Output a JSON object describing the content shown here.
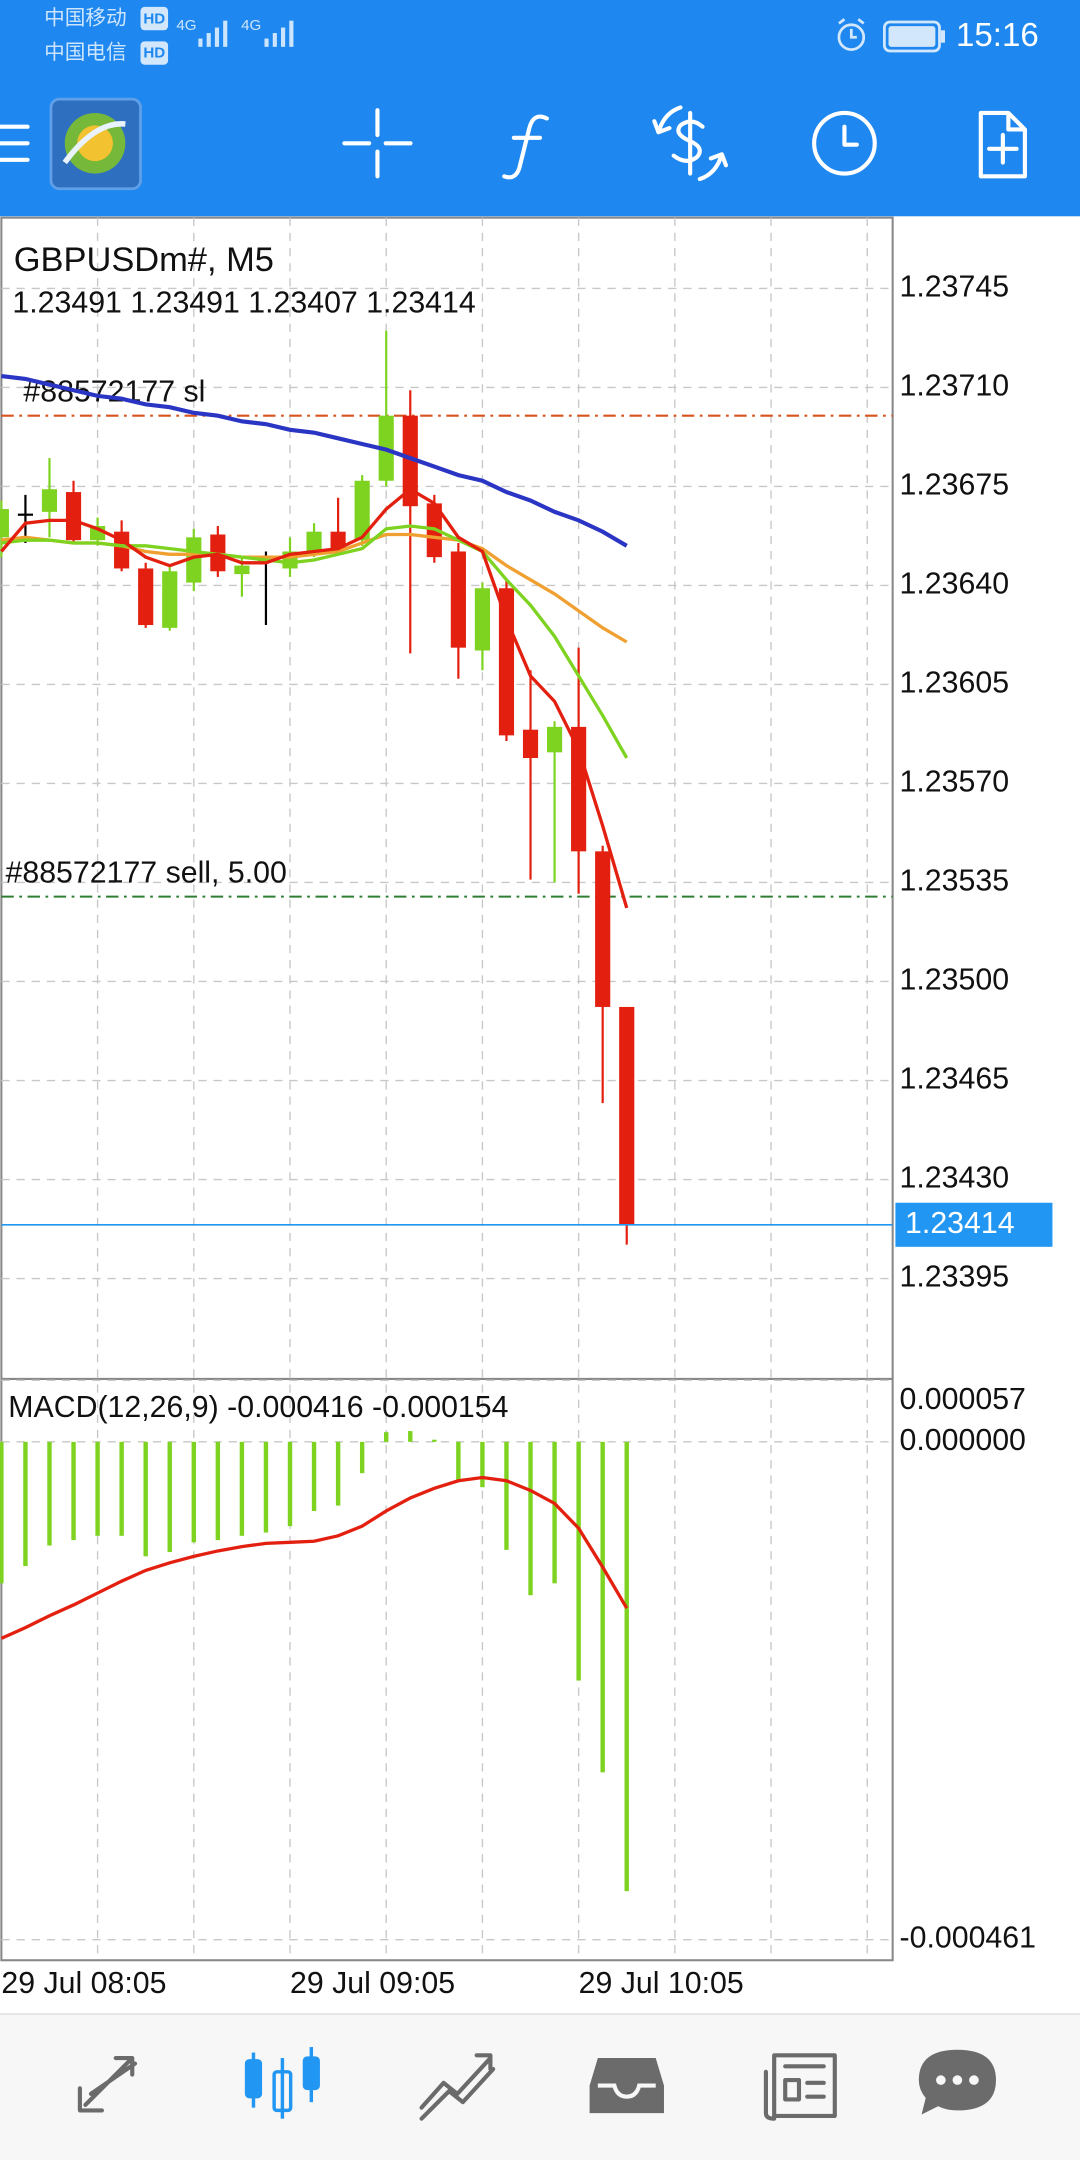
{
  "status_bar": {
    "carrier_1": "中国移动",
    "carrier_2": "中国电信",
    "hd": "HD",
    "network": "4G",
    "time": "15:16"
  },
  "chart_data": [
    {
      "type": "candlestick",
      "title": "GBPUSDm#, M5",
      "categories": [
        "29 Jul 08:05",
        null,
        null,
        null,
        null,
        null,
        null,
        null,
        null,
        null,
        null,
        null,
        "29 Jul 09:05",
        null,
        null,
        null,
        null,
        null,
        null,
        null,
        null,
        null,
        null,
        null,
        "29 Jul 10:05",
        null,
        null
      ],
      "open": [
        1.23657,
        1.23665,
        1.23666,
        1.23673,
        1.23656,
        1.23659,
        1.23646,
        1.23625,
        1.23641,
        1.23658,
        1.23644,
        1.23649,
        1.23646,
        1.23652,
        1.23659,
        1.23656,
        1.23677,
        1.237,
        1.23669,
        1.23652,
        1.23617,
        1.23639,
        1.23589,
        1.23581,
        1.2359,
        1.23546,
        1.23491
      ],
      "high": [
        1.2367,
        1.23672,
        1.23685,
        1.23677,
        1.23664,
        1.23663,
        1.23648,
        1.23647,
        1.2366,
        1.23661,
        1.2365,
        1.23652,
        1.23657,
        1.23662,
        1.23671,
        1.23679,
        1.2373,
        1.23709,
        1.23672,
        1.23655,
        1.23641,
        1.23642,
        1.2361,
        1.23592,
        1.23618,
        1.23548,
        1.23491
      ],
      "low": [
        1.2365,
        1.23655,
        1.23657,
        1.23655,
        1.23654,
        1.23645,
        1.23625,
        1.23624,
        1.23638,
        1.23643,
        1.23636,
        1.23626,
        1.23643,
        1.2365,
        1.23651,
        1.23654,
        1.23675,
        1.23616,
        1.23648,
        1.23607,
        1.2361,
        1.23585,
        1.23536,
        1.23535,
        1.23531,
        1.23457,
        1.23407
      ],
      "close": [
        1.23667,
        1.23665,
        1.23674,
        1.23656,
        1.23661,
        1.23646,
        1.23626,
        1.23645,
        1.23657,
        1.23645,
        1.23647,
        1.23649,
        1.23652,
        1.23659,
        1.23653,
        1.23677,
        1.237,
        1.23668,
        1.2365,
        1.23618,
        1.23639,
        1.23587,
        1.23579,
        1.2359,
        1.23546,
        1.23491,
        1.23414
      ],
      "up_color": "#7ed321",
      "down_color": "#e3200f",
      "doji_color": "#000000",
      "series": [
        {
          "color": "#2a35c4",
          "values": [
            1.23714,
            1.23713,
            1.23711,
            1.23709,
            1.23707,
            1.23706,
            1.23704,
            1.23703,
            1.23701,
            1.237,
            1.23698,
            1.23697,
            1.23695,
            1.23694,
            1.23692,
            1.2369,
            1.23688,
            1.23685,
            1.23682,
            1.23679,
            1.23677,
            1.23673,
            1.2367,
            1.23666,
            1.23663,
            1.23659,
            1.23654
          ]
        },
        {
          "color": "#f0a030",
          "values": [
            1.23656,
            1.23657,
            1.23656,
            1.23655,
            1.23655,
            1.23654,
            1.23652,
            1.23651,
            1.23651,
            1.23651,
            1.2365,
            1.2365,
            1.2365,
            1.23651,
            1.23652,
            1.23655,
            1.23658,
            1.23658,
            1.23657,
            1.23656,
            1.23653,
            1.23647,
            1.23642,
            1.23637,
            1.23631,
            1.23625,
            1.2362
          ]
        },
        {
          "color": "#7ed321",
          "values": [
            1.23655,
            1.23656,
            1.23656,
            1.23655,
            1.23655,
            1.23654,
            1.23654,
            1.23653,
            1.23652,
            1.23651,
            1.2365,
            1.23649,
            1.23648,
            1.23649,
            1.23651,
            1.23653,
            1.2366,
            1.23661,
            1.2366,
            1.23656,
            1.23652,
            1.23642,
            1.23633,
            1.23622,
            1.23608,
            1.23594,
            1.23579
          ]
        },
        {
          "color": "#e3200f",
          "values": [
            1.23652,
            1.23662,
            1.23663,
            1.23663,
            1.2366,
            1.23656,
            1.2365,
            1.23647,
            1.2365,
            1.23651,
            1.23648,
            1.23648,
            1.23651,
            1.23652,
            1.23653,
            1.23657,
            1.23667,
            1.23674,
            1.23669,
            1.23657,
            1.23652,
            1.23628,
            1.23608,
            1.23599,
            1.23582,
            1.23555,
            1.23526
          ]
        }
      ],
      "levels": [
        {
          "label": "#88572177 sl",
          "value": 1.237,
          "color": "#d9531e"
        },
        {
          "label": "#88572177 sell, 5.00",
          "value": 1.2353,
          "color": "#2e7d32"
        }
      ],
      "bid_color": "#2196f3",
      "ylim": [
        1.2336,
        1.2377
      ],
      "yticks": [
        1.23745,
        {
          "value": 1.2371,
          "label": "1.23710"
        },
        1.23675,
        {
          "value": 1.2364,
          "label": "1.23640"
        },
        1.23605,
        {
          "value": 1.2357,
          "label": "1.23570"
        },
        1.23535,
        {
          "value": 1.235,
          "label": "1.23500"
        },
        1.23465,
        {
          "value": 1.2343,
          "label": "1.23430"
        },
        1.23395
      ],
      "grid": true
    },
    {
      "type": "macd",
      "title": "MACD(12,26,9)",
      "color": "#7ed321",
      "values": [
        -0.000131,
        -0.000115,
        -9.6e-05,
        -9.1e-05,
        -8.7e-05,
        -8.7e-05,
        -0.000106,
        -0.000102,
        -9.3e-05,
        -9.1e-05,
        -8.7e-05,
        -8.4e-05,
        -7.8e-05,
        -6.4e-05,
        -5.9e-05,
        -2.9e-05,
        9e-06,
        1e-05,
        2e-06,
        -3.6e-05,
        -4.2e-05,
        -0.0001,
        -0.000142,
        -0.000131,
        -0.000221,
        -0.000306,
        -0.000416
      ],
      "signal": {
        "color": "#e3200f",
        "values": [
          -0.000182,
          -0.000172,
          -0.000161,
          -0.000151,
          -0.00014,
          -0.000129,
          -0.000119,
          -0.000112,
          -0.000106,
          -0.000101,
          -9.7e-05,
          -9.4e-05,
          -9.3e-05,
          -9.2e-05,
          -8.7e-05,
          -7.8e-05,
          -6.4e-05,
          -5.2e-05,
          -4.3e-05,
          -3.6e-05,
          -3.3e-05,
          -3.6e-05,
          -4.5e-05,
          -5.7e-05,
          -8e-05,
          -0.000116,
          -0.000154
        ]
      },
      "ylim": [
        -0.00048,
        5.7e-05
      ],
      "yticks": [
        5.7e-05,
        {
          "value": 0,
          "label": "0.000000"
        },
        -0.000461
      ],
      "grid": true
    }
  ]
}
